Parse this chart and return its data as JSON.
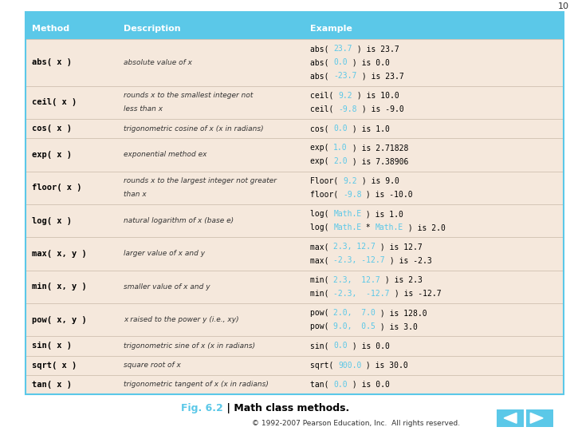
{
  "title_number": "10",
  "header": [
    "Method",
    "Description",
    "Example"
  ],
  "header_bg": "#5bc8e8",
  "header_text_color": "#ffffff",
  "body_bg": "#f5e8dc",
  "table_border_color": "#5bc8e8",
  "rows": [
    {
      "method": "abs( x )",
      "description": "absolute value of x",
      "desc_italic_parts": [
        "absolute value of ",
        "x"
      ],
      "desc_italic_flags": [
        false,
        true
      ],
      "example_parts": [
        [
          [
            "abs( ",
            "#000000"
          ],
          [
            "23.7",
            "#5bc8e8"
          ],
          [
            " ) is 23.7",
            "#000000"
          ]
        ],
        [
          [
            "abs( ",
            "#000000"
          ],
          [
            "0.0",
            "#5bc8e8"
          ],
          [
            " ) is 0.0",
            "#000000"
          ]
        ],
        [
          [
            "abs( ",
            "#000000"
          ],
          [
            "-23.7",
            "#5bc8e8"
          ],
          [
            " ) is 23.7",
            "#000000"
          ]
        ]
      ]
    },
    {
      "method": "ceil( x )",
      "description": "rounds x to the smallest integer not\nless than x",
      "desc_italic_parts": [
        "rounds ",
        "x",
        " to the smallest integer not\nless than ",
        "x"
      ],
      "desc_italic_flags": [
        false,
        true,
        false,
        true
      ],
      "example_parts": [
        [
          [
            "ceil( ",
            "#000000"
          ],
          [
            "9.2",
            "#5bc8e8"
          ],
          [
            " ) is 10.0",
            "#000000"
          ]
        ],
        [
          [
            "ceil( ",
            "#000000"
          ],
          [
            "-9.8",
            "#5bc8e8"
          ],
          [
            " ) is -9.0",
            "#000000"
          ]
        ]
      ]
    },
    {
      "method": "cos( x )",
      "description": "trigonometric cosine of x (x in radians)",
      "desc_italic_parts": [
        "trigonometric cosine of ",
        "x",
        " (",
        "x",
        " in radians)"
      ],
      "desc_italic_flags": [
        false,
        true,
        false,
        true,
        false
      ],
      "example_parts": [
        [
          [
            "cos( ",
            "#000000"
          ],
          [
            "0.0",
            "#5bc8e8"
          ],
          [
            " ) is 1.0",
            "#000000"
          ]
        ]
      ]
    },
    {
      "method": "exp( x )",
      "description": "exponential method ex",
      "desc_italic_parts": [
        "exponential method ",
        "ex"
      ],
      "desc_italic_flags": [
        false,
        true
      ],
      "example_parts": [
        [
          [
            "exp( ",
            "#000000"
          ],
          [
            "1.0",
            "#5bc8e8"
          ],
          [
            " ) is 2.71828",
            "#000000"
          ]
        ],
        [
          [
            "exp( ",
            "#000000"
          ],
          [
            "2.0",
            "#5bc8e8"
          ],
          [
            " ) is 7.38906",
            "#000000"
          ]
        ]
      ]
    },
    {
      "method": "floor( x )",
      "description": "rounds x to the largest integer not greater\nthan x",
      "desc_italic_parts": [
        "rounds ",
        "x",
        " to the largest integer not greater\nthan ",
        "x"
      ],
      "desc_italic_flags": [
        false,
        true,
        false,
        true
      ],
      "example_parts": [
        [
          [
            "Floor( ",
            "#000000"
          ],
          [
            "9.2",
            "#5bc8e8"
          ],
          [
            " ) is 9.0",
            "#000000"
          ]
        ],
        [
          [
            "floor( ",
            "#000000"
          ],
          [
            "-9.8",
            "#5bc8e8"
          ],
          [
            " ) is -10.0",
            "#000000"
          ]
        ]
      ]
    },
    {
      "method": "log( x )",
      "description": "natural logarithm of x (base e)",
      "desc_italic_parts": [
        "natural logarithm of ",
        "x",
        " (base ",
        "e",
        ")"
      ],
      "desc_italic_flags": [
        false,
        true,
        false,
        true,
        false
      ],
      "example_parts": [
        [
          [
            "log( ",
            "#000000"
          ],
          [
            "Math.E",
            "#5bc8e8"
          ],
          [
            " ) is 1.0",
            "#000000"
          ]
        ],
        [
          [
            "log( ",
            "#000000"
          ],
          [
            "Math.E",
            "#5bc8e8"
          ],
          [
            " * ",
            "#000000"
          ],
          [
            "Math.E",
            "#5bc8e8"
          ],
          [
            " ) is 2.0",
            "#000000"
          ]
        ]
      ]
    },
    {
      "method": "max( x, y )",
      "description": "larger value of x and y",
      "desc_italic_parts": [
        "larger value of ",
        "x",
        " and ",
        "y"
      ],
      "desc_italic_flags": [
        false,
        true,
        false,
        true
      ],
      "example_parts": [
        [
          [
            "max( ",
            "#000000"
          ],
          [
            "2.3, 12.7",
            "#5bc8e8"
          ],
          [
            " ) is 12.7",
            "#000000"
          ]
        ],
        [
          [
            "max( ",
            "#000000"
          ],
          [
            "-2.3, -12.7",
            "#5bc8e8"
          ],
          [
            " ) is -2.3",
            "#000000"
          ]
        ]
      ]
    },
    {
      "method": "min( x, y )",
      "description": "smaller value of x and y",
      "desc_italic_parts": [
        "smaller value of ",
        "x",
        " and ",
        "y"
      ],
      "desc_italic_flags": [
        false,
        true,
        false,
        true
      ],
      "example_parts": [
        [
          [
            "min( ",
            "#000000"
          ],
          [
            "2.3,  12.7",
            "#5bc8e8"
          ],
          [
            " ) is 2.3",
            "#000000"
          ]
        ],
        [
          [
            "min( ",
            "#000000"
          ],
          [
            "-2.3,  -12.7",
            "#5bc8e8"
          ],
          [
            " ) is -12.7",
            "#000000"
          ]
        ]
      ]
    },
    {
      "method": "pow( x, y )",
      "description": "x raised to the power y (i.e., xy)",
      "desc_italic_parts": [
        "x",
        " raised to the power ",
        "y",
        " (i.e., ",
        "xy",
        ")"
      ],
      "desc_italic_flags": [
        true,
        false,
        true,
        false,
        true,
        false
      ],
      "example_parts": [
        [
          [
            "pow( ",
            "#000000"
          ],
          [
            "2.0,  7.0",
            "#5bc8e8"
          ],
          [
            " ) is 128.0",
            "#000000"
          ]
        ],
        [
          [
            "pow( ",
            "#000000"
          ],
          [
            "9.0,  0.5",
            "#5bc8e8"
          ],
          [
            " ) is 3.0",
            "#000000"
          ]
        ]
      ]
    },
    {
      "method": "sin( x )",
      "description": "trigonometric sine of x (x in radians)",
      "desc_italic_parts": [
        "trigonometric sine of ",
        "x",
        " (",
        "x",
        " in radians)"
      ],
      "desc_italic_flags": [
        false,
        true,
        false,
        true,
        false
      ],
      "example_parts": [
        [
          [
            "sin( ",
            "#000000"
          ],
          [
            "0.0",
            "#5bc8e8"
          ],
          [
            " ) is 0.0",
            "#000000"
          ]
        ]
      ]
    },
    {
      "method": "sqrt( x )",
      "description": "square root of x",
      "desc_italic_parts": [
        "square root of ",
        "x"
      ],
      "desc_italic_flags": [
        false,
        true
      ],
      "example_parts": [
        [
          [
            "sqrt( ",
            "#000000"
          ],
          [
            "900.0",
            "#5bc8e8"
          ],
          [
            " ) is 30.0",
            "#000000"
          ]
        ]
      ]
    },
    {
      "method": "tan( x )",
      "description": "trigonometric tangent of x (x in radians)",
      "desc_italic_parts": [
        "trigonometric tangent of ",
        "x",
        " (",
        "x",
        " in radians)"
      ],
      "desc_italic_flags": [
        false,
        true,
        false,
        true,
        false
      ],
      "example_parts": [
        [
          [
            "tan( ",
            "#000000"
          ],
          [
            "0.0",
            "#5bc8e8"
          ],
          [
            " ) is 0.0",
            "#000000"
          ]
        ]
      ]
    }
  ],
  "caption_fig": "Fig. 6.2",
  "caption_rest": " | Math class methods.",
  "caption_color": "#5bc8e8",
  "caption_rest_color": "#000000",
  "footer": "© 1992-2007 Pearson Education, Inc.  All rights reserved.",
  "nav_arrow_color": "#5bc8e8",
  "bg_color": "#ffffff"
}
